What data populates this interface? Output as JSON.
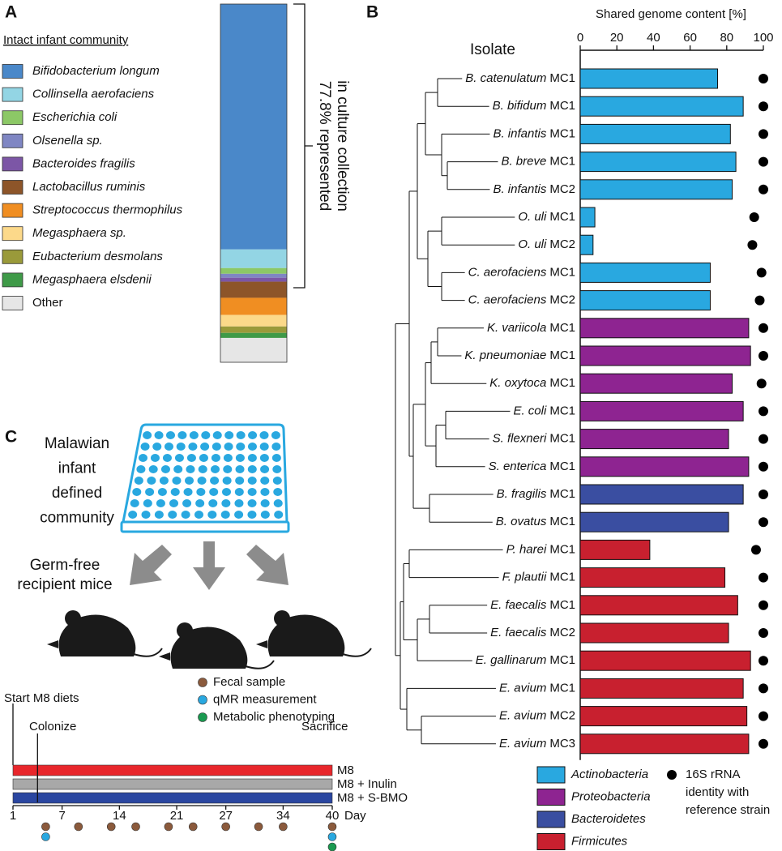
{
  "chart_data": [
    {
      "type": "stacked-bar",
      "panel_label": "A",
      "legend_title": "Intact infant community",
      "annotation_lines": [
        "77.8% represented",
        "in culture collection"
      ],
      "ylim": [
        0,
        100
      ],
      "series": [
        {
          "name": "Bifidobacterium longum",
          "italic": true,
          "color": "#4a88c9",
          "values": [
            68.5
          ]
        },
        {
          "name": "Collinsella aerofaciens",
          "italic": true,
          "color": "#93d5e4",
          "values": [
            5.2
          ]
        },
        {
          "name": "Escherichia coli",
          "italic": true,
          "color": "#8cc866",
          "values": [
            1.6
          ]
        },
        {
          "name": "Olsenella sp.",
          "italic": true,
          "color": "#7f86c3",
          "values": [
            1.1
          ]
        },
        {
          "name": "Bacteroides fragilis",
          "italic": true,
          "color": "#7c56a6",
          "values": [
            1.1
          ]
        },
        {
          "name": "Lactobacillus ruminis",
          "italic": true,
          "color": "#8d5529",
          "values": [
            4.5
          ]
        },
        {
          "name": "Streptococcus thermophilus",
          "italic": true,
          "color": "#f08e22",
          "values": [
            4.8
          ]
        },
        {
          "name": "Megasphaera sp.",
          "italic": true,
          "color": "#fcd98a",
          "values": [
            3.2
          ]
        },
        {
          "name": "Eubacterium desmolans",
          "italic": true,
          "color": "#9a9a3a",
          "values": [
            1.8
          ]
        },
        {
          "name": "Megasphaera elsdenii",
          "italic": true,
          "color": "#3f9a48",
          "values": [
            1.4
          ]
        },
        {
          "name": "Other",
          "italic": false,
          "color": "#e6e6e6",
          "values": [
            6.8
          ]
        }
      ]
    },
    {
      "type": "bar",
      "orientation": "horizontal",
      "panel_label": "B",
      "x_label": "Shared genome content [%]",
      "category_header": "Isolate",
      "xlim": [
        0,
        100
      ],
      "xticks": [
        0,
        20,
        40,
        60,
        80,
        100
      ],
      "categories": [
        [
          "B. catenulatum",
          "MC1"
        ],
        [
          "B. bifidum",
          "MC1"
        ],
        [
          "B. infantis",
          "MC1"
        ],
        [
          "B. breve",
          "MC1"
        ],
        [
          "B. infantis",
          "MC2"
        ],
        [
          "O. uli",
          "MC1"
        ],
        [
          "O. uli",
          "MC2"
        ],
        [
          "C. aerofaciens",
          "MC1"
        ],
        [
          "C. aerofaciens",
          "MC2"
        ],
        [
          "K. variicola",
          "MC1"
        ],
        [
          "K. pneumoniae",
          "MC1"
        ],
        [
          "K. oxytoca",
          "MC1"
        ],
        [
          "E. coli",
          "MC1"
        ],
        [
          "S. flexneri",
          "MC1"
        ],
        [
          "S. enterica",
          "MC1"
        ],
        [
          "B. fragilis",
          "MC1"
        ],
        [
          "B. ovatus",
          "MC1"
        ],
        [
          "P. harei",
          "MC1"
        ],
        [
          "F. plautii",
          "MC1"
        ],
        [
          "E. faecalis",
          "MC1"
        ],
        [
          "E. faecalis",
          "MC2"
        ],
        [
          "E. gallinarum",
          "MC1"
        ],
        [
          "E. avium",
          "MC1"
        ],
        [
          "E. avium",
          "MC2"
        ],
        [
          "E. avium",
          "MC3"
        ]
      ],
      "series": [
        {
          "name": "Actinobacteria",
          "color": "#29a8e0",
          "values": [
            75,
            89,
            82,
            85,
            83,
            8,
            7,
            71,
            71,
            null,
            null,
            null,
            null,
            null,
            null,
            null,
            null,
            null,
            null,
            null,
            null,
            null,
            null,
            null,
            null
          ]
        },
        {
          "name": "Proteobacteria",
          "color": "#8e2491",
          "values": [
            null,
            null,
            null,
            null,
            null,
            null,
            null,
            null,
            null,
            92,
            93,
            83,
            89,
            81,
            92,
            null,
            null,
            null,
            null,
            null,
            null,
            null,
            null,
            null,
            null
          ]
        },
        {
          "name": "Bacteroidetes",
          "color": "#3a4ea1",
          "values": [
            null,
            null,
            null,
            null,
            null,
            null,
            null,
            null,
            null,
            null,
            null,
            null,
            null,
            null,
            null,
            89,
            81,
            null,
            null,
            null,
            null,
            null,
            null,
            null,
            null
          ]
        },
        {
          "name": "Firmicutes",
          "color": "#c8202f",
          "values": [
            null,
            null,
            null,
            null,
            null,
            null,
            null,
            null,
            null,
            null,
            null,
            null,
            null,
            null,
            null,
            null,
            null,
            38,
            79,
            86,
            81,
            93,
            89,
            91,
            92
          ]
        }
      ],
      "markers": {
        "name_lines": [
          "16S rRNA",
          "identity with",
          "reference strain"
        ],
        "color": "#000000",
        "values": [
          100,
          100,
          100,
          100,
          100,
          95,
          94,
          99,
          98,
          100,
          100,
          99,
          100,
          100,
          100,
          100,
          100,
          96,
          100,
          100,
          100,
          100,
          100,
          100,
          100
        ]
      }
    },
    {
      "type": "timeline",
      "panel_label": "C",
      "community_lines": [
        "Malawian",
        "infant",
        "defined",
        "community"
      ],
      "recipient_lines": [
        "Germ-free",
        "recipient mice"
      ],
      "start_label": "Start M8 diets",
      "end_label": "Sacrifice",
      "colonize": {
        "label": "Colonize",
        "day": 4
      },
      "x_label": "Day",
      "xlim": [
        1,
        40
      ],
      "xticks": [
        1,
        7,
        14,
        21,
        27,
        34,
        40
      ],
      "diets": [
        {
          "name": "M8",
          "color": "#e8262b"
        },
        {
          "name": "M8 + Inulin",
          "color": "#a8a8a8"
        },
        {
          "name": "M8 + S-BMO",
          "color": "#2a46a0"
        }
      ],
      "events": [
        {
          "name": "Fecal sample",
          "color": "#8b5a3c",
          "days": [
            5,
            9,
            13,
            16,
            20,
            23,
            27,
            31,
            34,
            40
          ]
        },
        {
          "name": "qMR measurement",
          "color": "#29a8e0",
          "days": [
            5,
            40
          ]
        },
        {
          "name": "Metabolic phenotyping",
          "color": "#1a9a50",
          "days": [
            40
          ]
        }
      ]
    }
  ]
}
